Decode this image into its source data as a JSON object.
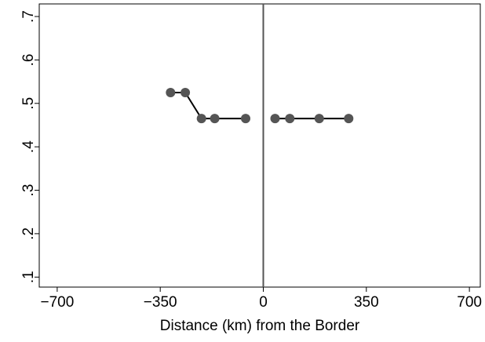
{
  "chart_data": {
    "type": "line",
    "x_label": "Distance (km) from the Border",
    "series": [
      {
        "x": [
          -315,
          -265,
          -210,
          -165,
          -60
        ],
        "values": [
          0.525,
          0.525,
          0.465,
          0.465,
          0.465
        ],
        "color": "#000000",
        "marker_color": "#555555"
      },
      {
        "x": [
          40,
          90,
          190,
          290
        ],
        "values": [
          0.465,
          0.465,
          0.465,
          0.465
        ],
        "color": "#000000",
        "marker_color": "#555555"
      }
    ],
    "xline": 0,
    "xlim": [
      -761,
      737
    ],
    "xticks": [
      {
        "value": -700,
        "label": "−700"
      },
      {
        "value": -350,
        "label": "−350"
      },
      0,
      350,
      700
    ],
    "ylim": [
      0.077,
      0.729
    ],
    "yticks": [
      {
        "value": 0.1,
        "label": ".1"
      },
      {
        "value": 0.2,
        "label": ".2"
      },
      {
        "value": 0.3,
        "label": ".3"
      },
      {
        "value": 0.4,
        "label": ".4"
      },
      {
        "value": 0.5,
        "label": ".5"
      },
      {
        "value": 0.6,
        "label": ".6"
      },
      {
        "value": 0.7,
        "label": ".7"
      }
    ]
  }
}
